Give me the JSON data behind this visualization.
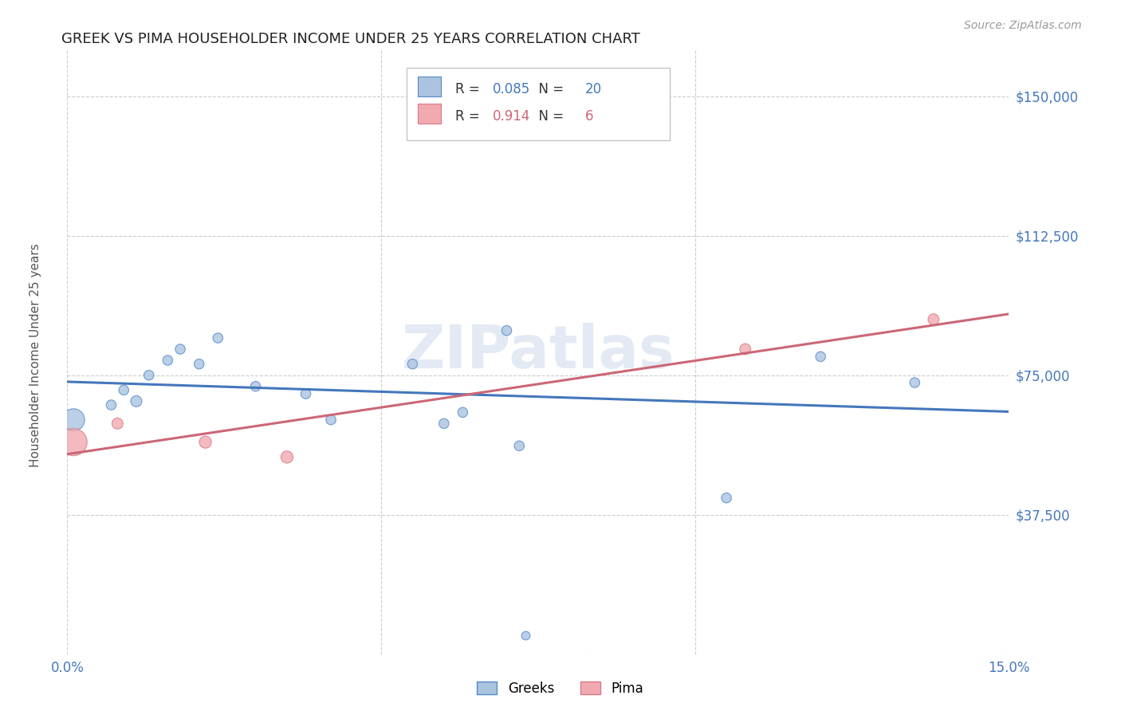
{
  "title": "GREEK VS PIMA HOUSEHOLDER INCOME UNDER 25 YEARS CORRELATION CHART",
  "source": "Source: ZipAtlas.com",
  "ylabel": "Householder Income Under 25 years",
  "watermark": "ZIPatlas",
  "xlim": [
    0.0,
    0.15
  ],
  "ylim": [
    0,
    162500
  ],
  "yticks": [
    0,
    37500,
    75000,
    112500,
    150000
  ],
  "ytick_labels": [
    "",
    "$37,500",
    "$75,000",
    "$112,500",
    "$150,000"
  ],
  "xticks": [
    0.0,
    0.05,
    0.1,
    0.15
  ],
  "xtick_labels": [
    "0.0%",
    "",
    "",
    "15.0%"
  ],
  "greeks_R": "0.085",
  "greeks_N": "20",
  "pima_R": "0.914",
  "pima_N": "6",
  "greeks_color": "#aac4e0",
  "greeks_edge_color": "#5588cc",
  "greeks_line_color": "#4477bb",
  "pima_color": "#f0aab0",
  "pima_edge_color": "#dd7788",
  "pima_line_color": "#cc6677",
  "title_color": "#222222",
  "axis_tick_color": "#4477bb",
  "background_color": "#ffffff",
  "grid_color": "#cccccc",
  "greeks_x": [
    0.001,
    0.007,
    0.009,
    0.011,
    0.013,
    0.016,
    0.018,
    0.021,
    0.024,
    0.03,
    0.038,
    0.042,
    0.055,
    0.06,
    0.063,
    0.07,
    0.072,
    0.105,
    0.12,
    0.135
  ],
  "greeks_y": [
    63000,
    67000,
    71000,
    68000,
    75000,
    79000,
    82000,
    78000,
    85000,
    72000,
    70000,
    63000,
    78000,
    62000,
    65000,
    87000,
    56000,
    42000,
    80000,
    73000
  ],
  "greeks_size": [
    400,
    80,
    80,
    100,
    80,
    80,
    80,
    80,
    80,
    80,
    80,
    80,
    80,
    80,
    80,
    80,
    80,
    80,
    80,
    80
  ],
  "greeks_extra_x": [
    0.073
  ],
  "greeks_extra_y": [
    5000
  ],
  "greeks_extra_size": [
    60
  ],
  "pima_x": [
    0.001,
    0.008,
    0.022,
    0.035,
    0.108,
    0.138
  ],
  "pima_y": [
    57000,
    62000,
    57000,
    53000,
    82000,
    90000
  ],
  "pima_size": [
    600,
    100,
    120,
    120,
    100,
    100
  ]
}
